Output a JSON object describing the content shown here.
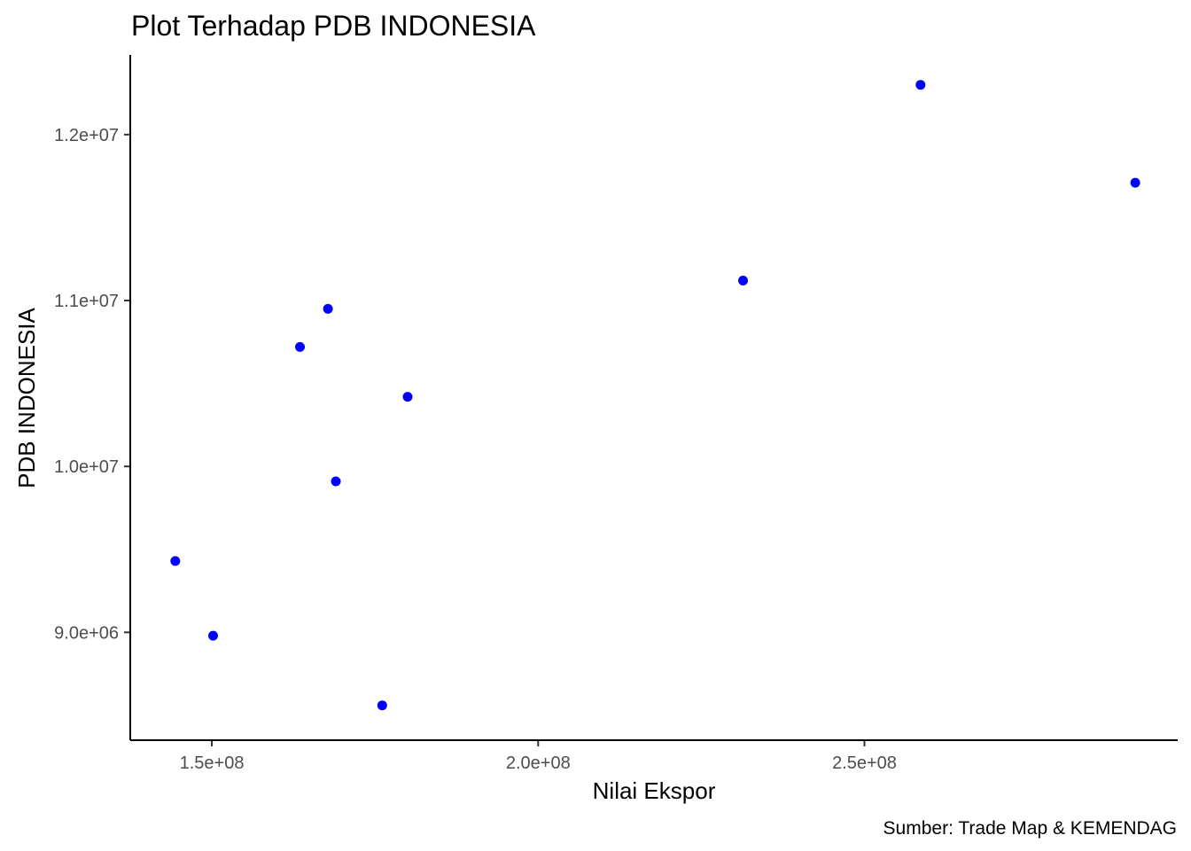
{
  "chart_data": {
    "type": "scatter",
    "title": "Plot Terhadap PDB INDONESIA",
    "xlabel": "Nilai Ekspor",
    "ylabel": "PDB INDONESIA",
    "caption": "Sumber:  Trade Map & KEMENDAG",
    "xlim": [
      137500000,
      298000000
    ],
    "ylim": [
      8350000,
      12480000
    ],
    "x_ticks": [
      {
        "value": 150000000,
        "label": "1.5e+08"
      },
      {
        "value": 200000000,
        "label": "2.0e+08"
      },
      {
        "value": 250000000,
        "label": "2.5e+08"
      }
    ],
    "y_ticks": [
      {
        "value": 9000000,
        "label": "9.0e+06"
      },
      {
        "value": 10000000,
        "label": "1.0e+07"
      },
      {
        "value": 11000000,
        "label": "1.1e+07"
      },
      {
        "value": 12000000,
        "label": "1.2e+07"
      }
    ],
    "grid": false,
    "point_color": "#0000ff",
    "points": [
      {
        "x": 144400000,
        "y": 9430000
      },
      {
        "x": 150200000,
        "y": 8980000
      },
      {
        "x": 163500000,
        "y": 10720000
      },
      {
        "x": 167800000,
        "y": 10950000
      },
      {
        "x": 169000000,
        "y": 9910000
      },
      {
        "x": 176100000,
        "y": 8560000
      },
      {
        "x": 180000000,
        "y": 10420000
      },
      {
        "x": 231400000,
        "y": 11120000
      },
      {
        "x": 258600000,
        "y": 12300000
      },
      {
        "x": 291500000,
        "y": 11710000
      }
    ]
  }
}
